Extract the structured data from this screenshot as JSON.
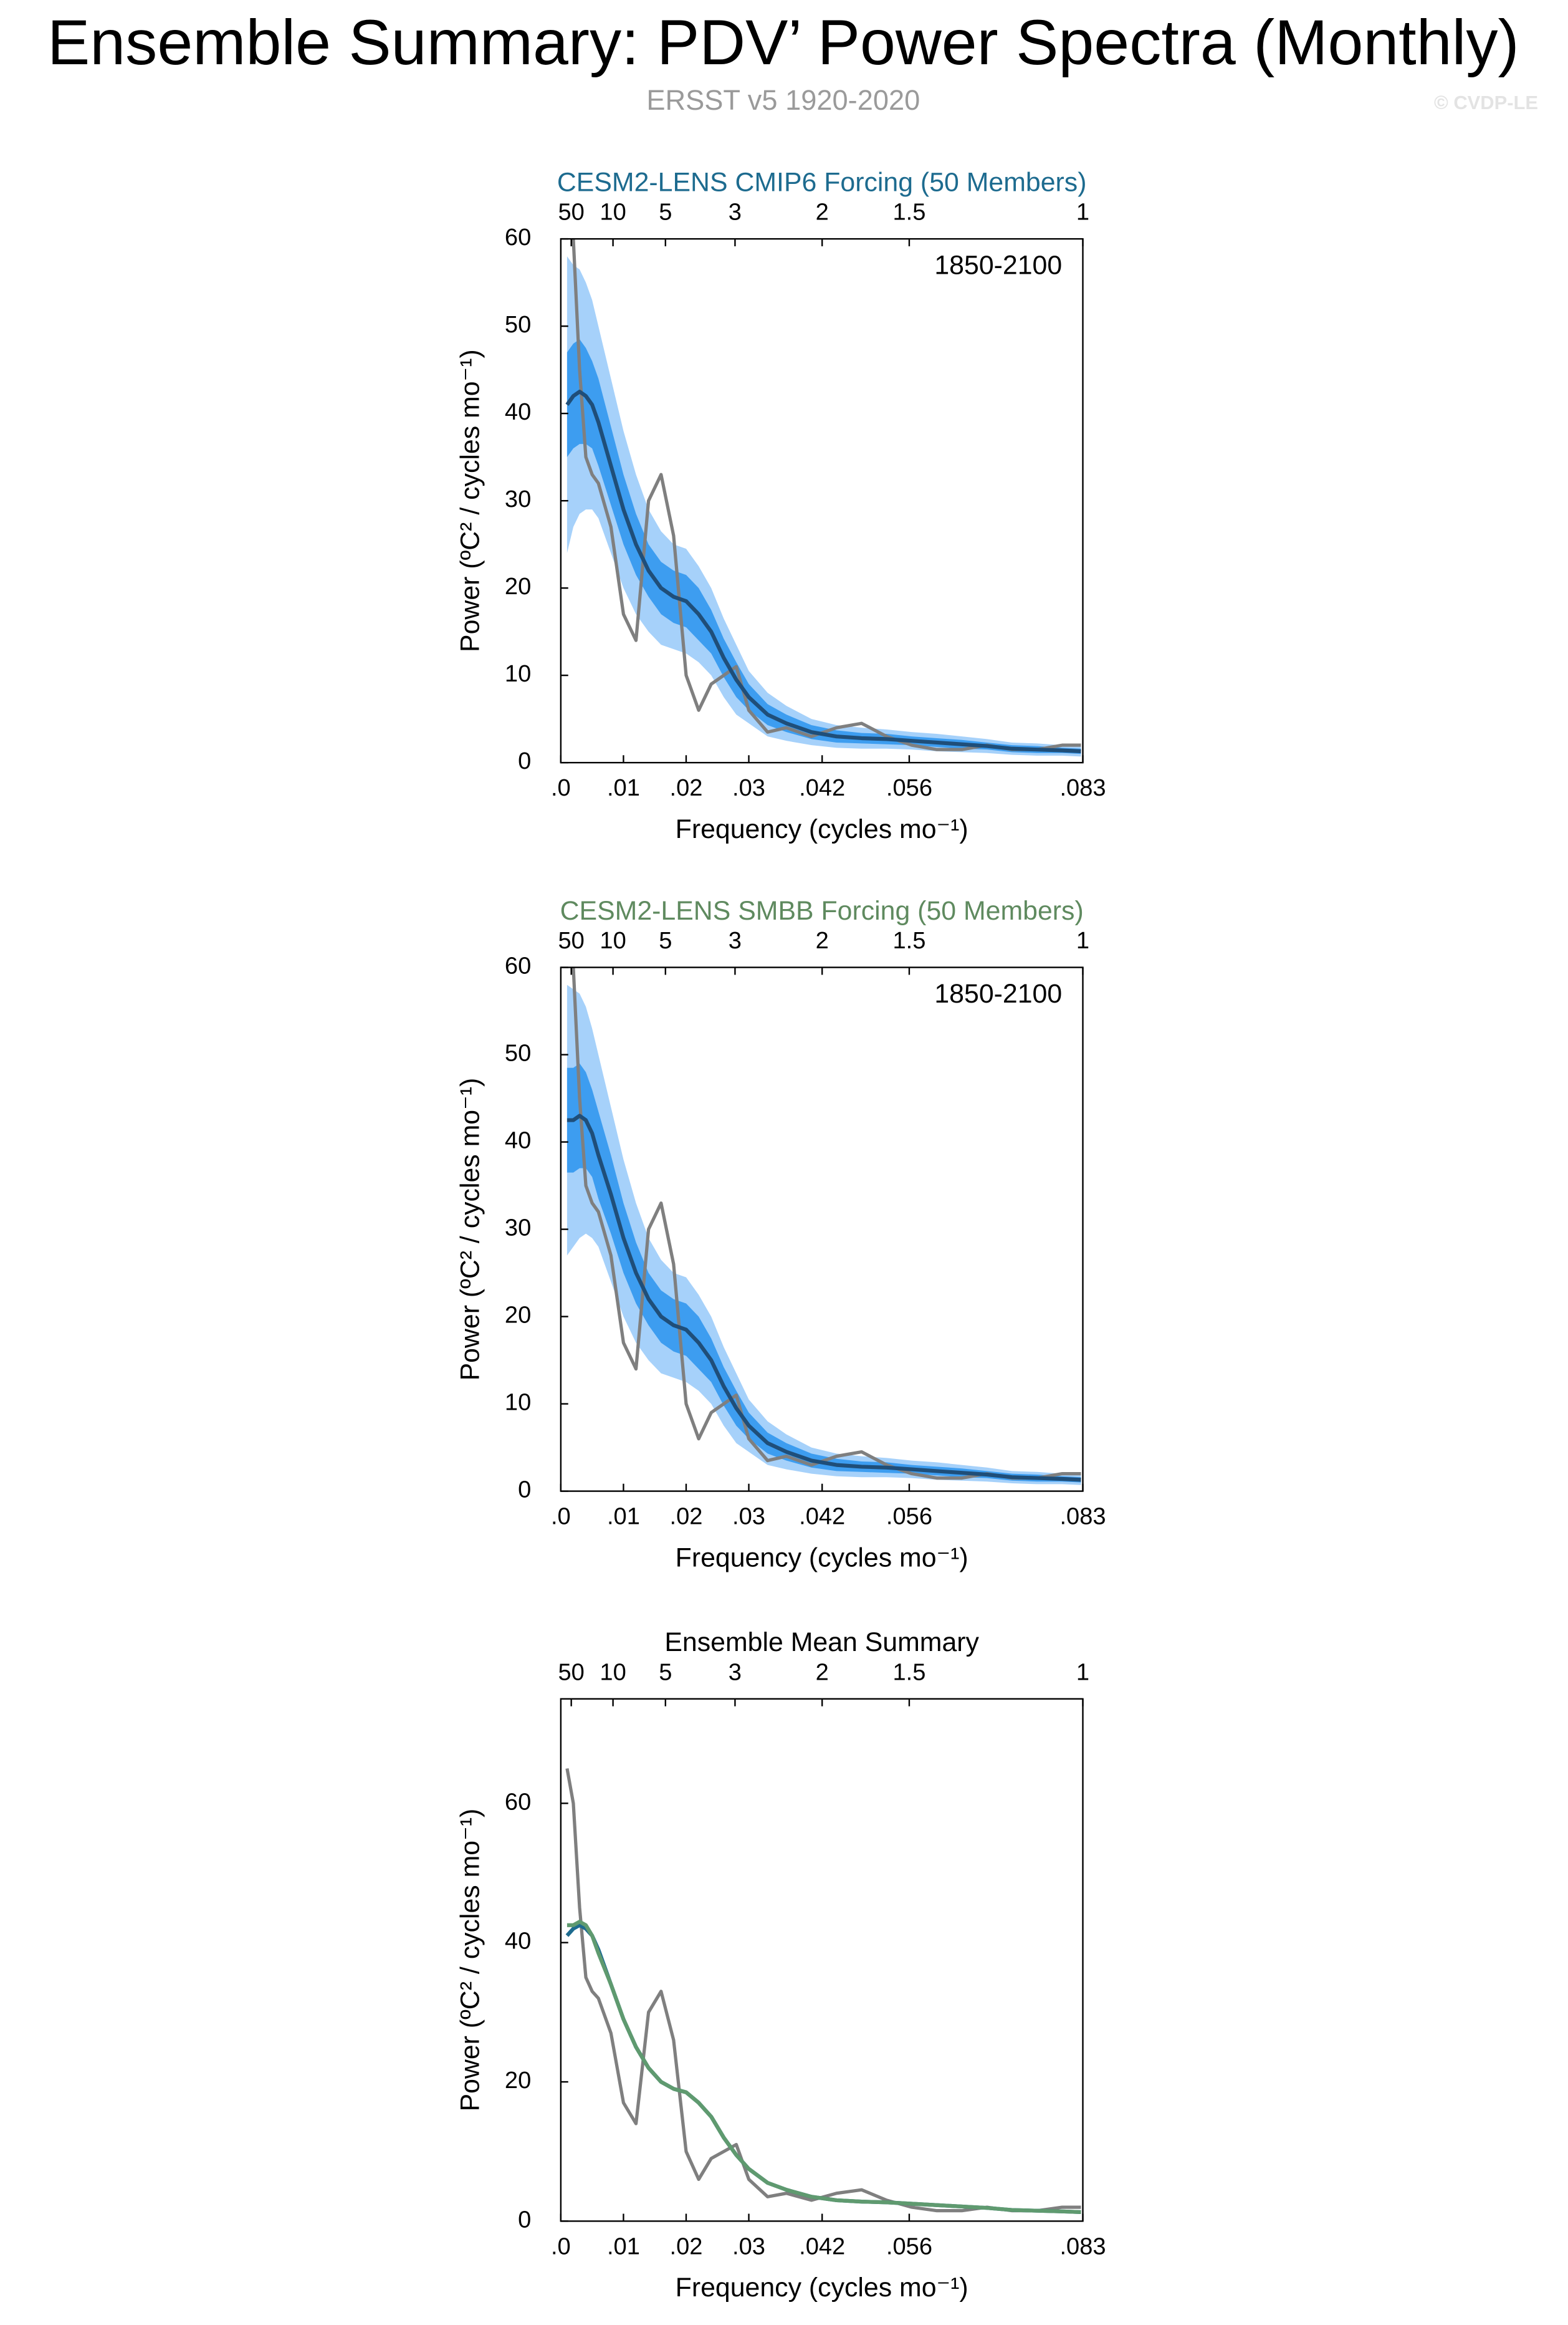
{
  "header": {
    "title": "Ensemble Summary: PDV’ Power Spectra (Monthly)",
    "subtitle": "ERSST v5 1920-2020",
    "credit": "© CVDP-LE"
  },
  "chart_data": [
    {
      "type": "line",
      "title": "CESM2-LENS CMIP6 Forcing (50 Members)",
      "title_color": "#1d6b8f",
      "annotation": "1850-2100",
      "xlabel": "Frequency (cycles mo⁻¹)",
      "ylabel": "Power (ºC² / cycles mo⁻¹)",
      "xlim": [
        0,
        0.0833
      ],
      "ylim": [
        0,
        60
      ],
      "yticks": [
        0,
        10,
        20,
        30,
        40,
        50,
        60
      ],
      "xticks": [
        {
          "value": 0,
          "label": ".0"
        },
        {
          "value": 0.01,
          "label": ".01"
        },
        {
          "value": 0.02,
          "label": ".02"
        },
        {
          "value": 0.03,
          "label": ".03"
        },
        {
          "value": 0.0417,
          "label": ".042"
        },
        {
          "value": 0.0556,
          "label": ".056"
        },
        {
          "value": 0.0833,
          "label": ".083"
        }
      ],
      "x2ticks": [
        {
          "value": 0.00167,
          "label": "50"
        },
        {
          "value": 0.00833,
          "label": "10"
        },
        {
          "value": 0.0167,
          "label": "5"
        },
        {
          "value": 0.0278,
          "label": "3"
        },
        {
          "value": 0.0417,
          "label": "2"
        },
        {
          "value": 0.0556,
          "label": "1.5"
        },
        {
          "value": 0.0833,
          "label": "1"
        }
      ],
      "x": [
        0.001,
        0.002,
        0.003,
        0.004,
        0.005,
        0.006,
        0.008,
        0.01,
        0.012,
        0.014,
        0.016,
        0.018,
        0.02,
        0.022,
        0.024,
        0.026,
        0.028,
        0.03,
        0.033,
        0.036,
        0.04,
        0.044,
        0.048,
        0.052,
        0.056,
        0.06,
        0.064,
        0.068,
        0.072,
        0.076,
        0.08,
        0.083
      ],
      "bands": [
        {
          "color": "#a6d1fa",
          "lower": [
            24,
            27,
            28.5,
            29,
            29,
            28,
            24,
            20,
            17,
            15,
            13.5,
            13,
            12.5,
            11.5,
            10,
            7.5,
            5.5,
            4.5,
            3,
            2.5,
            2,
            1.7,
            1.6,
            1.6,
            1.5,
            1.3,
            1.2,
            1.1,
            0.9,
            0.8,
            0.8,
            0.7
          ],
          "upper": [
            58,
            57,
            56.5,
            55,
            53,
            50,
            44,
            38,
            33,
            29,
            26.5,
            25,
            24.5,
            22.5,
            20,
            16.5,
            13.5,
            10.5,
            8,
            6.5,
            5,
            4.3,
            4,
            3.8,
            3.5,
            3.3,
            3,
            2.7,
            2.3,
            2.2,
            2,
            1.9
          ]
        },
        {
          "color": "#3d9df0",
          "lower": [
            35,
            36,
            36.5,
            36.5,
            36,
            34,
            29.5,
            25,
            21.5,
            19,
            17,
            16,
            15.5,
            14,
            12.5,
            9.8,
            7.5,
            6,
            4.3,
            3.5,
            2.7,
            2.3,
            2.2,
            2.1,
            2,
            1.8,
            1.6,
            1.5,
            1.2,
            1.1,
            1.1,
            1
          ],
          "upper": [
            47,
            48,
            48.5,
            47.5,
            46,
            44,
            38.5,
            33,
            28.5,
            25,
            23,
            22,
            21.5,
            20,
            17.5,
            14.2,
            11.5,
            9,
            6.7,
            5.5,
            4.3,
            3.7,
            3.4,
            3.3,
            3,
            2.8,
            2.6,
            2.3,
            2,
            1.9,
            1.7,
            1.6
          ]
        }
      ],
      "series": [
        {
          "color": "#7f7f7f",
          "values": [
            65,
            60,
            45,
            35,
            33,
            32,
            27,
            17,
            14,
            30,
            33,
            26,
            10,
            6,
            9,
            10,
            11,
            6,
            3.5,
            4,
            3,
            4,
            4.5,
            3,
            2,
            1.5,
            1.5,
            2,
            1.5,
            1.5,
            2,
            2
          ]
        },
        {
          "color": "#1f4e79",
          "values": [
            41,
            42,
            42.5,
            42,
            41,
            39,
            34,
            29,
            25,
            22,
            20,
            19,
            18.5,
            17,
            15,
            12,
            9.5,
            7.5,
            5.5,
            4.5,
            3.5,
            3,
            2.8,
            2.7,
            2.5,
            2.3,
            2.1,
            1.9,
            1.6,
            1.5,
            1.4,
            1.3
          ]
        }
      ]
    },
    {
      "type": "line",
      "title": "CESM2-LENS SMBB Forcing (50 Members)",
      "title_color": "#5f8a5f",
      "annotation": "1850-2100",
      "xlabel": "Frequency (cycles mo⁻¹)",
      "ylabel": "Power (ºC² / cycles mo⁻¹)",
      "xlim": [
        0,
        0.0833
      ],
      "ylim": [
        0,
        60
      ],
      "yticks": [
        0,
        10,
        20,
        30,
        40,
        50,
        60
      ],
      "xticks": [
        {
          "value": 0,
          "label": ".0"
        },
        {
          "value": 0.01,
          "label": ".01"
        },
        {
          "value": 0.02,
          "label": ".02"
        },
        {
          "value": 0.03,
          "label": ".03"
        },
        {
          "value": 0.0417,
          "label": ".042"
        },
        {
          "value": 0.0556,
          "label": ".056"
        },
        {
          "value": 0.0833,
          "label": ".083"
        }
      ],
      "x2ticks": [
        {
          "value": 0.00167,
          "label": "50"
        },
        {
          "value": 0.00833,
          "label": "10"
        },
        {
          "value": 0.0167,
          "label": "5"
        },
        {
          "value": 0.0278,
          "label": "3"
        },
        {
          "value": 0.0417,
          "label": "2"
        },
        {
          "value": 0.0556,
          "label": "1.5"
        },
        {
          "value": 0.0833,
          "label": "1"
        }
      ],
      "x": [
        0.001,
        0.002,
        0.003,
        0.004,
        0.005,
        0.006,
        0.008,
        0.01,
        0.012,
        0.014,
        0.016,
        0.018,
        0.02,
        0.022,
        0.024,
        0.026,
        0.028,
        0.03,
        0.033,
        0.036,
        0.04,
        0.044,
        0.048,
        0.052,
        0.056,
        0.06,
        0.064,
        0.068,
        0.072,
        0.076,
        0.08,
        0.083
      ],
      "bands": [
        {
          "color": "#a6d1fa",
          "lower": [
            27,
            28,
            29,
            29.5,
            29,
            28,
            24,
            20,
            17,
            15,
            13.5,
            13,
            12.5,
            11.5,
            10,
            7.5,
            5.5,
            4.5,
            3,
            2.5,
            2,
            1.7,
            1.6,
            1.6,
            1.5,
            1.3,
            1.2,
            1.1,
            0.9,
            0.8,
            0.8,
            0.7
          ],
          "upper": [
            58,
            57.5,
            57,
            55.5,
            53,
            50,
            44,
            38,
            33,
            29,
            26.5,
            25,
            24.5,
            22.5,
            20,
            16.5,
            13.5,
            10.5,
            8,
            6.5,
            5,
            4.3,
            4,
            3.8,
            3.5,
            3.3,
            3,
            2.7,
            2.3,
            2.2,
            2,
            1.9
          ]
        },
        {
          "color": "#3d9df0",
          "lower": [
            36.5,
            36.5,
            37,
            37,
            36,
            33.5,
            29.5,
            25,
            21.5,
            19,
            17,
            16,
            15.5,
            14,
            12.5,
            9.8,
            7.5,
            6,
            4.3,
            3.5,
            2.7,
            2.3,
            2.2,
            2.1,
            2,
            1.8,
            1.6,
            1.5,
            1.2,
            1.1,
            1.1,
            1
          ],
          "upper": [
            48.5,
            48.5,
            49,
            48,
            46,
            43.5,
            38.5,
            33,
            28.5,
            25,
            23,
            22,
            21.5,
            20,
            17.5,
            14.2,
            11.5,
            9,
            6.7,
            5.5,
            4.3,
            3.7,
            3.4,
            3.3,
            3,
            2.8,
            2.6,
            2.3,
            2,
            1.9,
            1.7,
            1.6
          ]
        }
      ],
      "series": [
        {
          "color": "#7f7f7f",
          "values": [
            65,
            60,
            45,
            35,
            33,
            32,
            27,
            17,
            14,
            30,
            33,
            26,
            10,
            6,
            9,
            10,
            11,
            6,
            3.5,
            4,
            3,
            4,
            4.5,
            3,
            2,
            1.5,
            1.5,
            2,
            1.5,
            1.5,
            2,
            2
          ]
        },
        {
          "color": "#1f4e79",
          "values": [
            42.5,
            42.5,
            43,
            42.5,
            41,
            38.5,
            34,
            29,
            25,
            22,
            20,
            19,
            18.5,
            17,
            15,
            12,
            9.5,
            7.5,
            5.5,
            4.5,
            3.5,
            3,
            2.8,
            2.7,
            2.5,
            2.3,
            2.1,
            1.9,
            1.6,
            1.5,
            1.4,
            1.3
          ]
        }
      ]
    },
    {
      "type": "line",
      "title": "Ensemble Mean Summary",
      "title_color": "#000000",
      "xlabel": "Frequency (cycles mo⁻¹)",
      "ylabel": "Power (ºC² / cycles mo⁻¹)",
      "xlim": [
        0,
        0.0833
      ],
      "ylim": [
        0,
        75
      ],
      "yticks": [
        0,
        20,
        40,
        60
      ],
      "xticks": [
        {
          "value": 0,
          "label": ".0"
        },
        {
          "value": 0.01,
          "label": ".01"
        },
        {
          "value": 0.02,
          "label": ".02"
        },
        {
          "value": 0.03,
          "label": ".03"
        },
        {
          "value": 0.0417,
          "label": ".042"
        },
        {
          "value": 0.0556,
          "label": ".056"
        },
        {
          "value": 0.0833,
          "label": ".083"
        }
      ],
      "x2ticks": [
        {
          "value": 0.00167,
          "label": "50"
        },
        {
          "value": 0.00833,
          "label": "10"
        },
        {
          "value": 0.0167,
          "label": "5"
        },
        {
          "value": 0.0278,
          "label": "3"
        },
        {
          "value": 0.0417,
          "label": "2"
        },
        {
          "value": 0.0556,
          "label": "1.5"
        },
        {
          "value": 0.0833,
          "label": "1"
        }
      ],
      "x": [
        0.001,
        0.002,
        0.003,
        0.004,
        0.005,
        0.006,
        0.008,
        0.01,
        0.012,
        0.014,
        0.016,
        0.018,
        0.02,
        0.022,
        0.024,
        0.026,
        0.028,
        0.03,
        0.033,
        0.036,
        0.04,
        0.044,
        0.048,
        0.052,
        0.056,
        0.06,
        0.064,
        0.068,
        0.072,
        0.076,
        0.08,
        0.083
      ],
      "series": [
        {
          "color": "#7f7f7f",
          "values": [
            65,
            60,
            45,
            35,
            33,
            32,
            27,
            17,
            14,
            30,
            33,
            26,
            10,
            6,
            9,
            10,
            11,
            6,
            3.5,
            4,
            3,
            4,
            4.5,
            3,
            2,
            1.5,
            1.5,
            2,
            1.5,
            1.5,
            2,
            2
          ]
        },
        {
          "color": "#1d6b8f",
          "values": [
            41,
            42,
            42.5,
            42,
            41,
            39,
            34,
            29,
            25,
            22,
            20,
            19,
            18.5,
            17,
            15,
            12,
            9.5,
            7.5,
            5.5,
            4.5,
            3.5,
            3,
            2.8,
            2.7,
            2.5,
            2.3,
            2.1,
            1.9,
            1.6,
            1.5,
            1.4,
            1.3
          ]
        },
        {
          "color": "#5f9a6f",
          "values": [
            42.5,
            42.5,
            43,
            42.5,
            41,
            38.5,
            34,
            29,
            25,
            22,
            20,
            19,
            18.5,
            17,
            15,
            12,
            9.5,
            7.5,
            5.5,
            4.5,
            3.5,
            3,
            2.8,
            2.7,
            2.5,
            2.3,
            2.1,
            1.9,
            1.6,
            1.5,
            1.4,
            1.3
          ]
        }
      ]
    }
  ]
}
